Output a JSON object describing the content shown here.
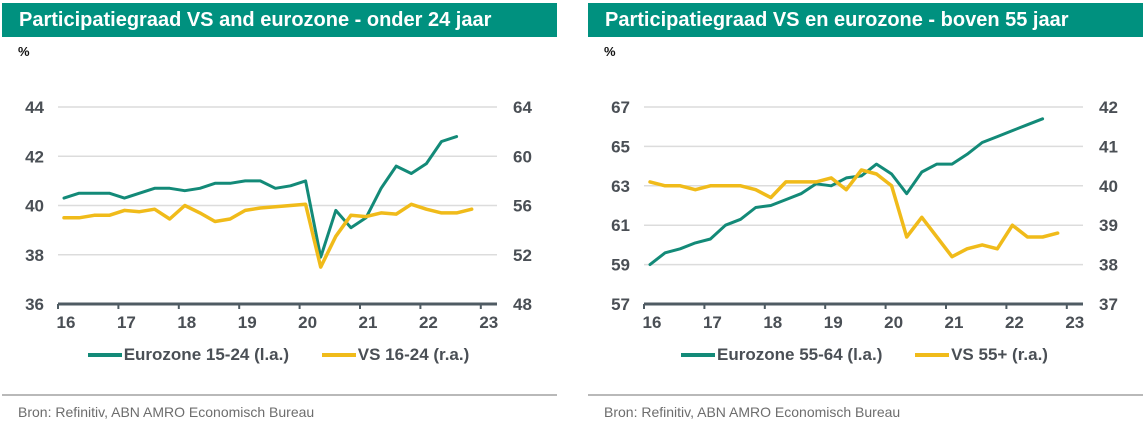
{
  "colors": {
    "header_bg": "#00917f",
    "teal": "#138a78",
    "yellow": "#f0bb1a",
    "grid": "#dcdcdc",
    "axis": "#4f5b63"
  },
  "chart_data": [
    {
      "type": "line",
      "title": "Participatiegraad VS and eurozone - onder 24 jaar",
      "unit_label": "%",
      "x_tick_labels": [
        "16",
        "17",
        "18",
        "19",
        "20",
        "21",
        "22",
        "23"
      ],
      "x_range": [
        2016,
        2023.2
      ],
      "y_left": {
        "range": [
          36,
          44
        ],
        "ticks": [
          36,
          38,
          40,
          42,
          44
        ]
      },
      "y_right": {
        "range": [
          48,
          64
        ],
        "ticks": [
          48,
          52,
          56,
          60,
          64
        ]
      },
      "grid": true,
      "legend_position": "bottom",
      "series": [
        {
          "name": "Eurozone 15-24 (l.a.)",
          "axis": "left",
          "color": "#138a78",
          "x_start": 2016.1,
          "x_step": 0.25,
          "values": [
            40.3,
            40.5,
            40.5,
            40.5,
            40.3,
            40.5,
            40.7,
            40.7,
            40.6,
            40.7,
            40.9,
            40.9,
            41.0,
            41.0,
            40.7,
            40.8,
            41.0,
            37.9,
            39.8,
            39.1,
            39.5,
            40.7,
            41.6,
            41.3,
            41.7,
            42.6,
            42.8
          ]
        },
        {
          "name": "VS 16-24 (r.a.)",
          "axis": "right",
          "color": "#f0bb1a",
          "x_start": 2016.1,
          "x_step": 0.25,
          "values": [
            55.0,
            55.0,
            55.2,
            55.2,
            55.6,
            55.5,
            55.7,
            54.9,
            56.0,
            55.4,
            54.7,
            54.9,
            55.6,
            55.8,
            55.9,
            56.0,
            56.1,
            51.0,
            53.5,
            55.2,
            55.1,
            55.4,
            55.3,
            56.1,
            55.7,
            55.4,
            55.4,
            55.7
          ]
        }
      ],
      "source": "Bron: Refinitiv, ABN AMRO Economisch Bureau"
    },
    {
      "type": "line",
      "title": "Participatiegraad VS en eurozone - boven 55 jaar",
      "unit_label": "%",
      "x_tick_labels": [
        "16",
        "17",
        "18",
        "19",
        "20",
        "21",
        "22",
        "23"
      ],
      "x_range": [
        2016,
        2023.2
      ],
      "y_left": {
        "range": [
          57,
          67
        ],
        "ticks": [
          57,
          59,
          61,
          63,
          65,
          67
        ]
      },
      "y_right": {
        "range": [
          37,
          42
        ],
        "ticks": [
          37,
          38,
          39,
          40,
          41,
          42
        ]
      },
      "grid": true,
      "legend_position": "bottom",
      "series": [
        {
          "name": "Eurozone 55-64 (l.a.)",
          "axis": "left",
          "color": "#138a78",
          "x_start": 2016.1,
          "x_step": 0.25,
          "values": [
            59.0,
            59.6,
            59.8,
            60.1,
            60.3,
            61.0,
            61.3,
            61.9,
            62.0,
            62.3,
            62.6,
            63.1,
            63.0,
            63.4,
            63.5,
            64.1,
            63.6,
            62.6,
            63.7,
            64.1,
            64.1,
            64.6,
            65.2,
            65.5,
            65.8,
            66.1,
            66.4
          ]
        },
        {
          "name": "VS 55+ (r.a.)",
          "axis": "right",
          "color": "#f0bb1a",
          "x_start": 2016.1,
          "x_step": 0.25,
          "values": [
            40.1,
            40.0,
            40.0,
            39.9,
            40.0,
            40.0,
            40.0,
            39.9,
            39.7,
            40.1,
            40.1,
            40.1,
            40.2,
            39.9,
            40.4,
            40.3,
            40.0,
            38.7,
            39.2,
            38.7,
            38.2,
            38.4,
            38.5,
            38.4,
            39.0,
            38.7,
            38.7,
            38.8
          ]
        }
      ],
      "source": "Bron: Refinitiv, ABN AMRO Economisch Bureau"
    }
  ]
}
